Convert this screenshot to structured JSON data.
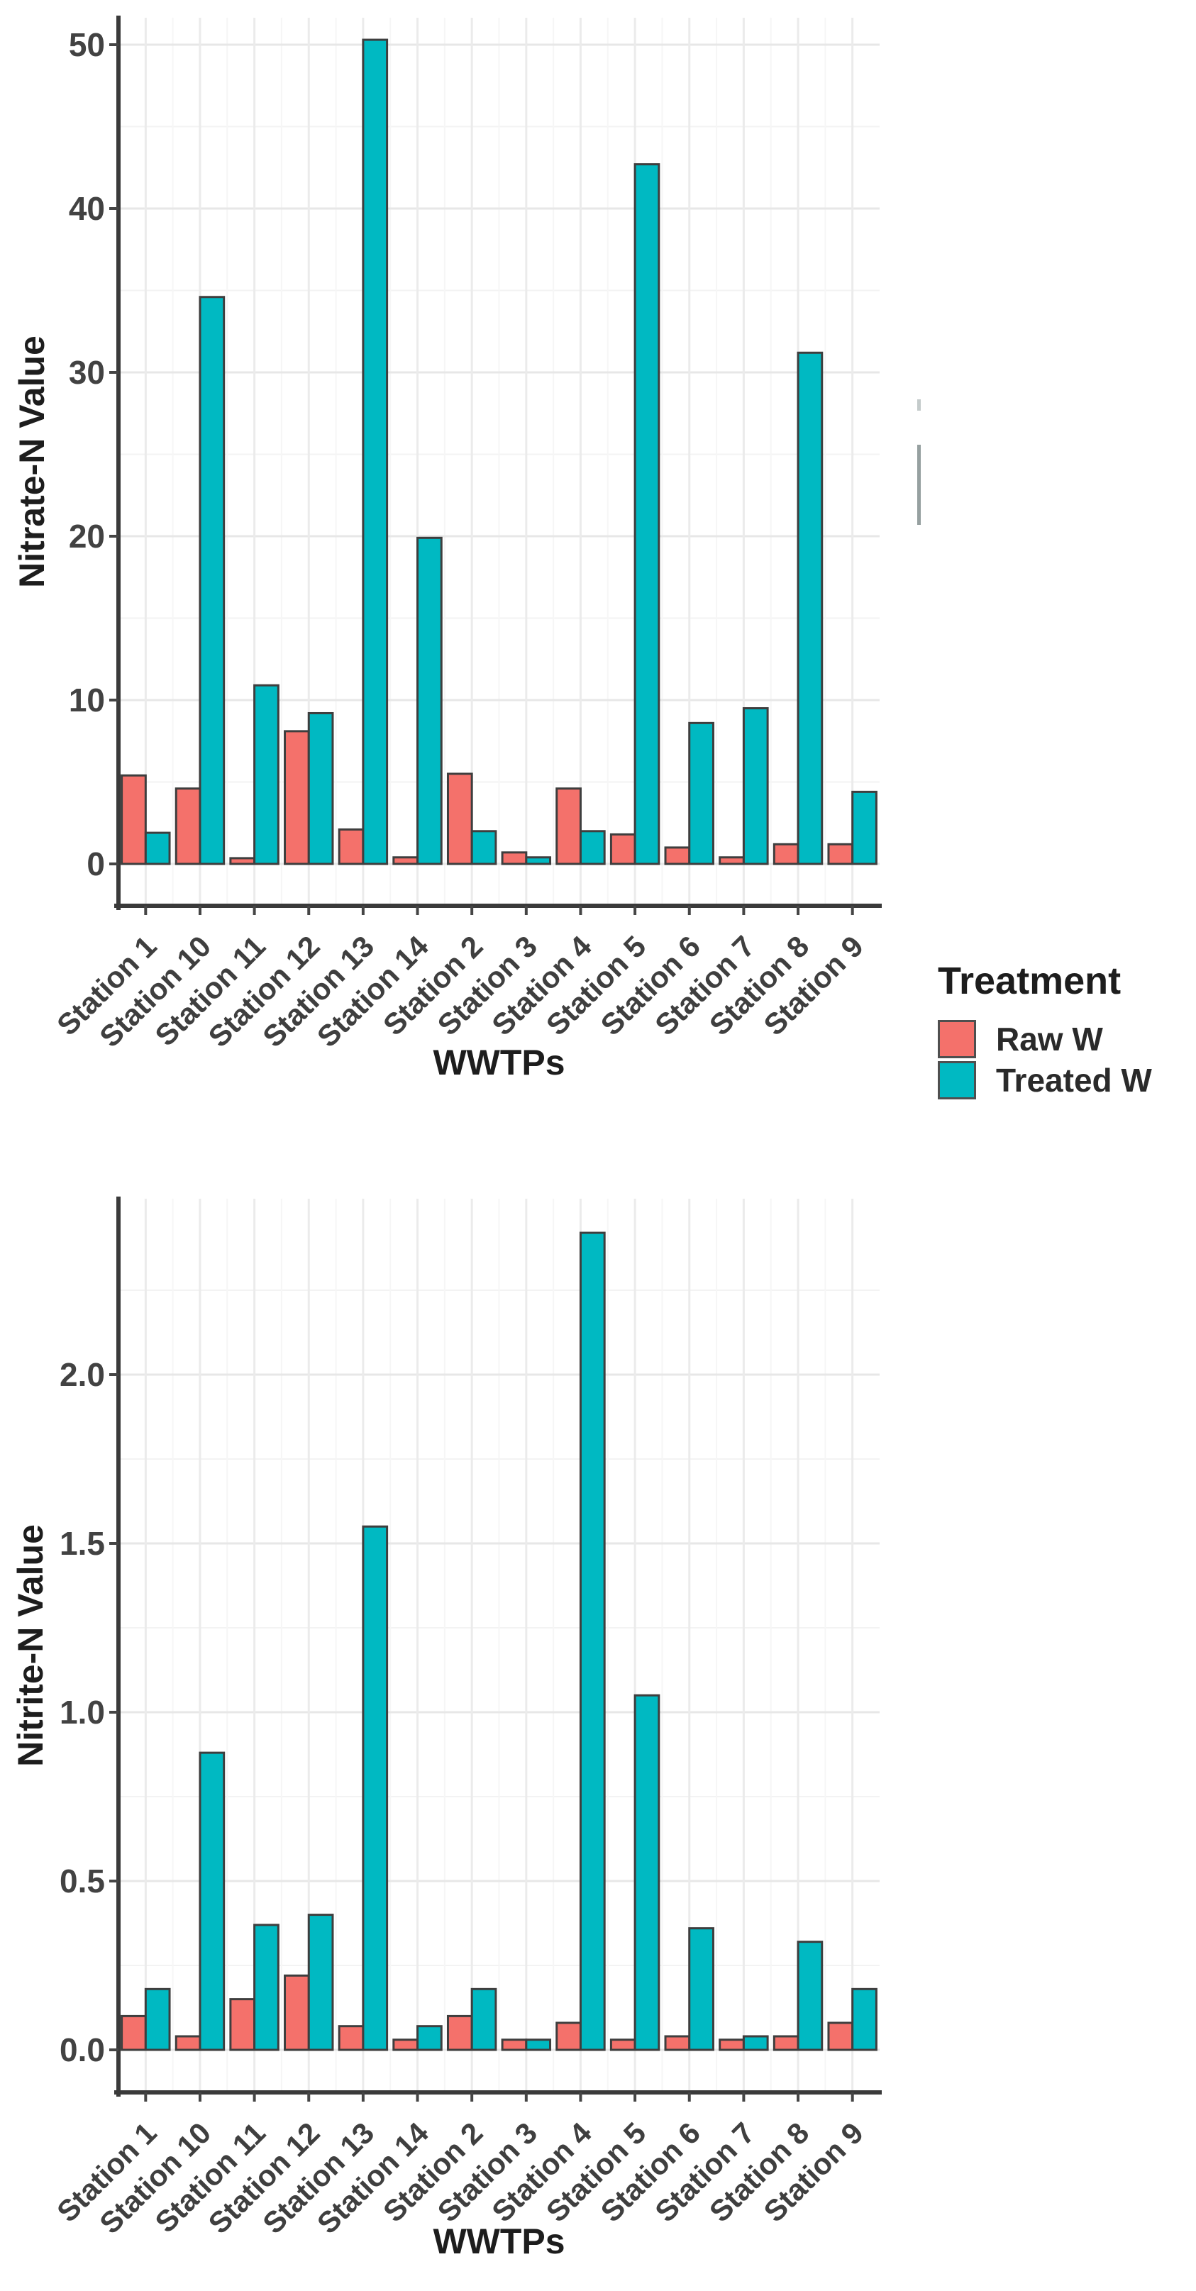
{
  "legend": {
    "title": "Treatment",
    "items": [
      {
        "label": "Raw W",
        "color": "#F4716B"
      },
      {
        "label": "Treated W",
        "color": "#00B9C2"
      }
    ]
  },
  "chart_data": [
    {
      "type": "bar",
      "title": "",
      "xlabel": "WWTPs",
      "ylabel": "Nitrate-N Value",
      "categories": [
        "Station 1",
        "Station 10",
        "Station 11",
        "Station 12",
        "Station 13",
        "Station 14",
        "Station 2",
        "Station 3",
        "Station 4",
        "Station 5",
        "Station 6",
        "Station 7",
        "Station 8",
        "Station 9"
      ],
      "series": [
        {
          "name": "Raw W",
          "color": "#F4716B",
          "values": [
            5.4,
            4.6,
            0.35,
            8.1,
            2.1,
            0.4,
            5.5,
            0.7,
            4.6,
            1.8,
            1.0,
            0.4,
            1.2,
            1.2
          ]
        },
        {
          "name": "Treated W",
          "color": "#00B9C2",
          "values": [
            1.9,
            34.6,
            10.9,
            9.2,
            50.3,
            19.9,
            2.0,
            0.4,
            2.0,
            42.7,
            8.6,
            9.5,
            31.2,
            4.4
          ]
        }
      ],
      "yticks": [
        0,
        10,
        20,
        30,
        40,
        50
      ],
      "ytick_labels": [
        "0",
        "10",
        "20",
        "30",
        "40",
        "50"
      ],
      "ylim": [
        0,
        52
      ],
      "grid": true,
      "legend_position": "right"
    },
    {
      "type": "bar",
      "title": "",
      "xlabel": "WWTPs",
      "ylabel": "Nitrite-N Value",
      "categories": [
        "Station 1",
        "Station 10",
        "Station 11",
        "Station 12",
        "Station 13",
        "Station 14",
        "Station 2",
        "Station 3",
        "Station 4",
        "Station 5",
        "Station 6",
        "Station 7",
        "Station 8",
        "Station 9"
      ],
      "series": [
        {
          "name": "Raw W",
          "color": "#F4716B",
          "values": [
            0.1,
            0.04,
            0.15,
            0.22,
            0.07,
            0.03,
            0.1,
            0.03,
            0.08,
            0.03,
            0.04,
            0.03,
            0.04,
            0.08
          ]
        },
        {
          "name": "Treated W",
          "color": "#00B9C2",
          "values": [
            0.18,
            0.88,
            0.37,
            0.4,
            1.55,
            0.07,
            0.18,
            0.03,
            2.42,
            1.05,
            0.36,
            0.04,
            0.32,
            0.18
          ]
        }
      ],
      "yticks": [
        0,
        0.5,
        1.0,
        1.5,
        2.0
      ],
      "ytick_labels": [
        "0.0",
        "0.5",
        "1.0",
        "1.5",
        "2.0"
      ],
      "ylim": [
        0,
        2.45
      ],
      "grid": true,
      "legend_position": "none"
    }
  ]
}
